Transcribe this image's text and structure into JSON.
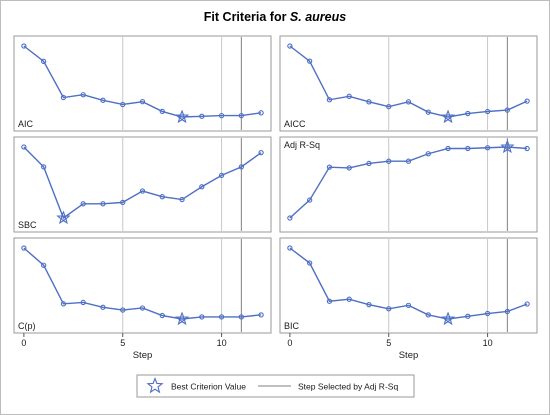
{
  "chart_data": {
    "type": "line",
    "title_prefix": "Fit Criteria for ",
    "title_species": "S. aureus",
    "xlabel": "Step",
    "x": [
      0,
      1,
      2,
      3,
      4,
      5,
      6,
      7,
      8,
      9,
      10,
      11,
      12
    ],
    "xlim": [
      -0.5,
      12.5
    ],
    "xticks": [
      0,
      5,
      10
    ],
    "selected_step": 11,
    "grid": "vertical reference lines at 5 and 10",
    "legend_position": "bottom",
    "legend": {
      "best_label": "Best Criterion Value",
      "selected_label": "Step Selected by Adj R-Sq"
    },
    "panels": [
      {
        "name": "AIC",
        "values": [
          1.0,
          0.78,
          0.26,
          0.3,
          0.22,
          0.16,
          0.2,
          0.06,
          -0.02,
          -0.01,
          0.0,
          0.0,
          0.04
        ],
        "best_step": 8
      },
      {
        "name": "AICC",
        "values": [
          1.0,
          0.78,
          0.22,
          0.27,
          0.19,
          0.12,
          0.19,
          0.04,
          -0.03,
          0.02,
          0.05,
          0.07,
          0.2
        ],
        "best_step": 8
      },
      {
        "name": "SBC",
        "values": [
          1.0,
          0.72,
          0.0,
          0.2,
          0.2,
          0.22,
          0.38,
          0.3,
          0.26,
          0.44,
          0.6,
          0.72,
          0.92
        ],
        "best_step": 2
      },
      {
        "name": "Adj R-Sq",
        "values": [
          0.02,
          0.26,
          0.7,
          0.69,
          0.75,
          0.78,
          0.78,
          0.88,
          0.95,
          0.95,
          0.96,
          0.97,
          0.95
        ],
        "best_step": 11
      },
      {
        "name": "C(p)",
        "values": [
          1.0,
          0.75,
          0.19,
          0.21,
          0.14,
          0.1,
          0.13,
          0.02,
          -0.03,
          0.0,
          0.0,
          0.0,
          0.03
        ],
        "best_step": 8
      },
      {
        "name": "BIC",
        "values": [
          1.0,
          0.78,
          0.22,
          0.25,
          0.17,
          0.11,
          0.16,
          0.02,
          -0.04,
          0.0,
          0.04,
          0.07,
          0.18
        ],
        "best_step": 8
      }
    ]
  }
}
